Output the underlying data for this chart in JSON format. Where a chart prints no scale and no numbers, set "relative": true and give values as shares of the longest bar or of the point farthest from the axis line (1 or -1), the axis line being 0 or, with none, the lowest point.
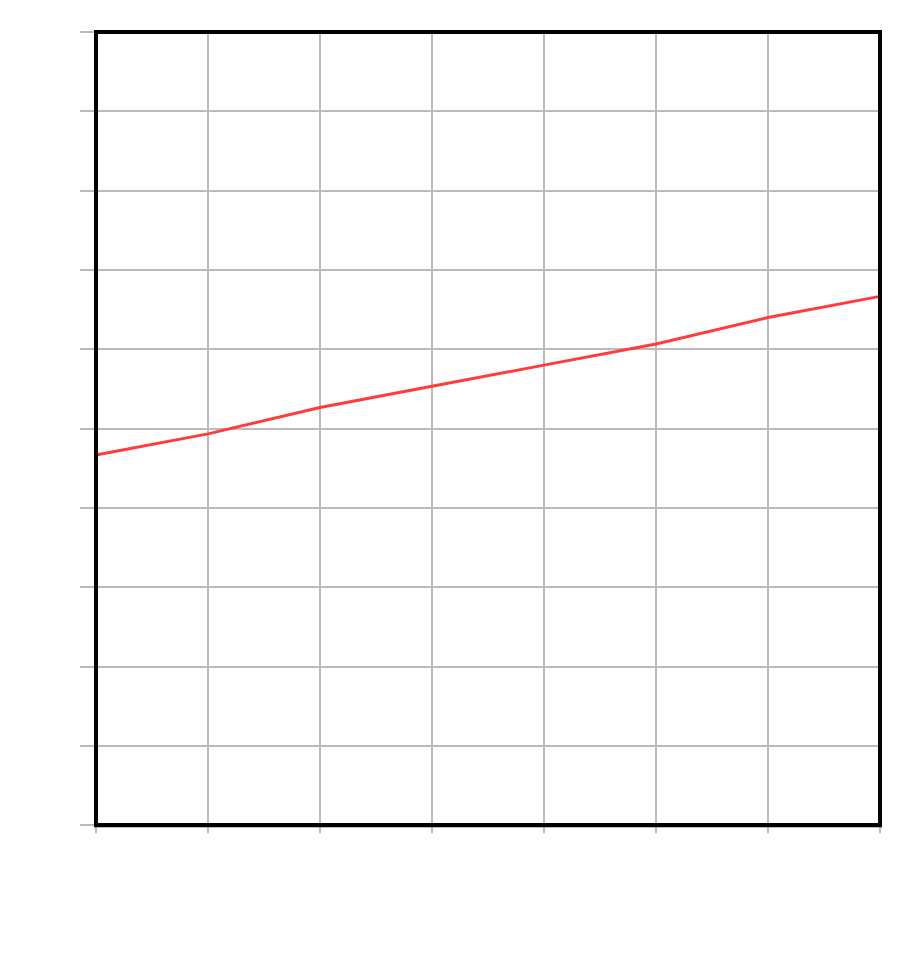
{
  "chart_data": {
    "type": "line",
    "relative": true,
    "categories": [
      null,
      null,
      null,
      null,
      null,
      null,
      null,
      null
    ],
    "series": [
      {
        "color": "#ff3b3b",
        "values": [
          0.7,
          0.74,
          0.79,
          0.83,
          0.87,
          0.91,
          0.96,
          1.0
        ]
      }
    ],
    "grid": true,
    "legend": false,
    "marker": "none",
    "line_style": "solid"
  }
}
